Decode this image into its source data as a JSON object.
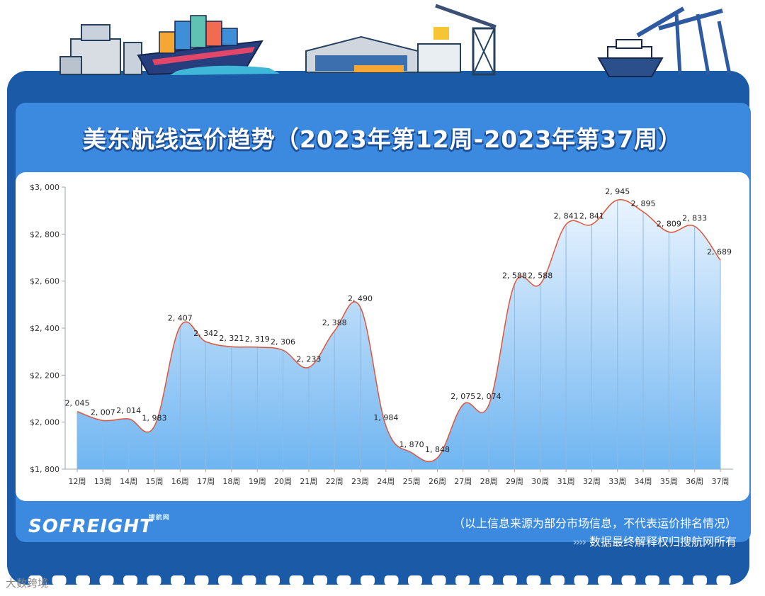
{
  "header": {
    "title": "美东航线运价趋势（2023年第12周-2023年第37周）"
  },
  "footer": {
    "logo_text": "SOFREIGHT",
    "logo_sub": "搜航网",
    "note_source": "（以上信息来源为部分市场信息，不代表运价排名情况）",
    "note_rights_arrows": "››››",
    "note_rights": "数据最终解释权归搜航网所有",
    "watermark_corner": "大数跨境"
  },
  "colors": {
    "panel": "#1a5aa6",
    "inner": "#3c8ae0",
    "line": "#e0553a",
    "area_top": "#e8f3ff",
    "area_bottom": "#74b8f2"
  },
  "chart_data": {
    "type": "area",
    "categories": [
      "12周",
      "13周",
      "14周",
      "15周",
      "16周",
      "17周",
      "18周",
      "19周",
      "20周",
      "21周",
      "22周",
      "23周",
      "24周",
      "25周",
      "26周",
      "27周",
      "28周",
      "29周",
      "30周",
      "31周",
      "32周",
      "33周",
      "34周",
      "35周",
      "36周",
      "37周"
    ],
    "values": [
      2045,
      2007,
      2014,
      1983,
      2407,
      2342,
      2321,
      2319,
      2306,
      2233,
      2388,
      2490,
      1984,
      1870,
      1848,
      2075,
      2074,
      2588,
      2588,
      2841,
      2841,
      2945,
      2895,
      2809,
      2833,
      2689
    ],
    "data_labels": [
      "2, 045",
      "2, 007",
      "2, 014",
      "1, 983",
      "2, 407",
      "2, 342",
      "2, 321",
      "2, 319",
      "2, 306",
      "2, 233",
      "2, 388",
      "2, 490",
      "1, 984",
      "1, 870",
      "1, 848",
      "2, 075",
      "2, 074",
      "2, 588",
      "2, 588",
      "2, 841",
      "2, 841",
      "2, 945",
      "2, 895",
      "2, 809",
      "2, 833",
      "2, 689"
    ],
    "y_ticks": [
      1800,
      2000,
      2200,
      2400,
      2600,
      2800,
      3000
    ],
    "y_tick_labels": [
      "$1, 800",
      "$2, 000",
      "$2, 200",
      "$2, 400",
      "$2, 600",
      "$2, 800",
      "$3, 000"
    ],
    "ylim": [
      1800,
      3000
    ],
    "grid": false,
    "legend": "none"
  }
}
